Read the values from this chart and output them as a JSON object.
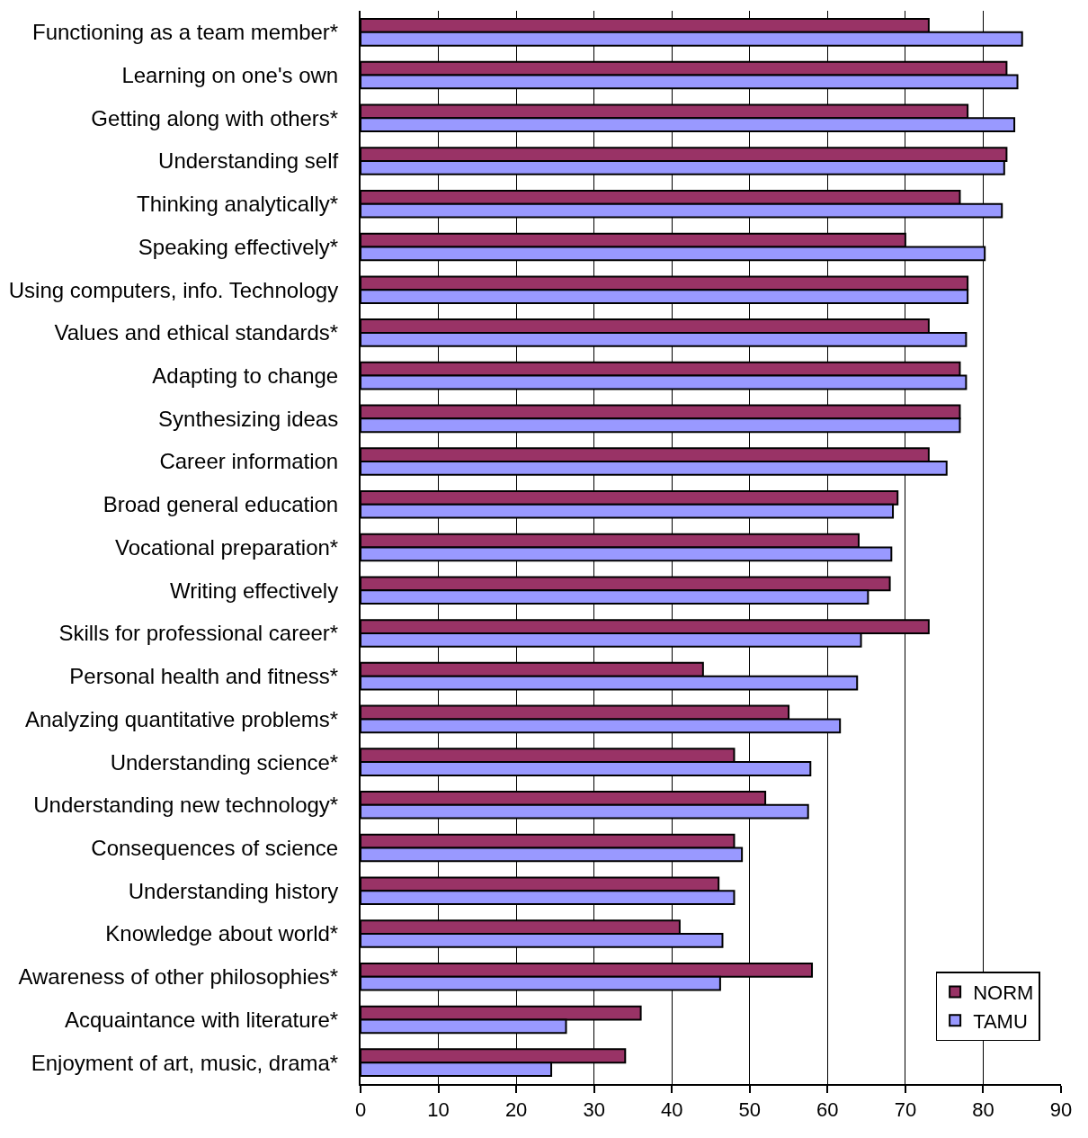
{
  "chart_data": {
    "type": "bar",
    "orientation": "horizontal",
    "categories": [
      "Functioning as a team member*",
      "Learning on one's own",
      "Getting along with others*",
      "Understanding self",
      "Thinking analytically*",
      "Speaking effectively*",
      "Using computers, info. Technology",
      "Values and ethical standards*",
      "Adapting to change",
      "Synthesizing ideas",
      "Career information",
      "Broad general education",
      "Vocational preparation*",
      "Writing effectively",
      "Skills for professional career*",
      "Personal health and fitness*",
      "Analyzing quantitative problems*",
      "Understanding science*",
      "Understanding new technology*",
      "Consequences of science",
      "Understanding history",
      "Knowledge about world*",
      "Awareness of other philosophies*",
      "Acquaintance with literature*",
      "Enjoyment of art, music, drama*"
    ],
    "series": [
      {
        "name": "NORM",
        "color": "#993366",
        "values": [
          73,
          83,
          78,
          83,
          77,
          70,
          78,
          73,
          77,
          77,
          73,
          69,
          64,
          68,
          73,
          44,
          55,
          48,
          52,
          48,
          46,
          41,
          58,
          36,
          34
        ]
      },
      {
        "name": "TAMU",
        "color": "#9999ff",
        "values": [
          85,
          84.4,
          84,
          82.7,
          82.4,
          80.2,
          78,
          77.8,
          77.8,
          77,
          75.3,
          68.4,
          68.2,
          65.2,
          64.3,
          63.8,
          61.6,
          57.8,
          57.5,
          49,
          48,
          46.5,
          46.2,
          26.4,
          24.5
        ]
      }
    ],
    "xlim": [
      0,
      90
    ],
    "xticks": [
      0,
      10,
      20,
      30,
      40,
      50,
      60,
      70,
      80,
      90
    ],
    "grid": "x",
    "legend": "bottom right"
  }
}
